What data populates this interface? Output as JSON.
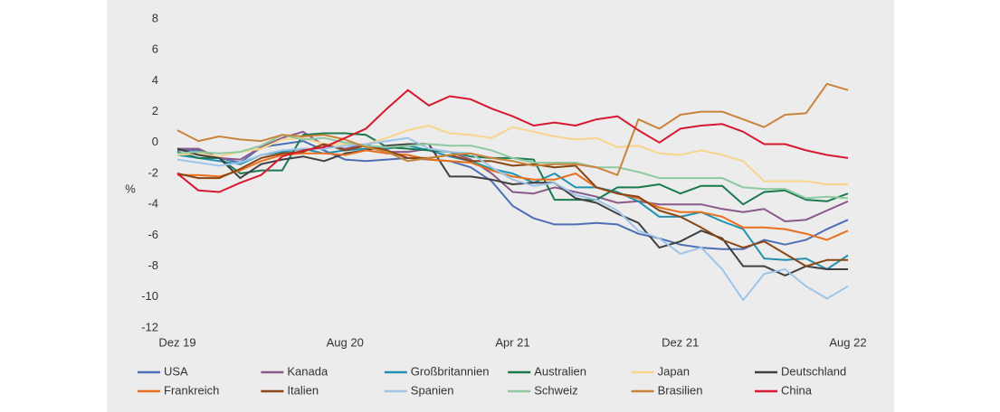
{
  "chart_data": {
    "type": "line",
    "y_label": "%",
    "categories": [
      "Dez 19",
      null,
      null,
      null,
      null,
      null,
      null,
      null,
      "Aug 20",
      null,
      null,
      null,
      null,
      null,
      null,
      null,
      "Apr 21",
      null,
      null,
      null,
      null,
      null,
      null,
      null,
      "Dez 21",
      null,
      null,
      null,
      null,
      null,
      null,
      null,
      "Aug 22"
    ],
    "ylim": [
      -12,
      8
    ],
    "yticks": [
      -12,
      -10,
      -8,
      -6,
      -4,
      -2,
      0,
      2,
      4,
      6,
      8
    ],
    "series": [
      {
        "name": "USA",
        "color": "#4f6fb5",
        "values": [
          -0.5,
          -0.5,
          -1.0,
          -1.3,
          -0.3,
          -0.1,
          0.1,
          -0.5,
          -1.1,
          -1.2,
          -1.1,
          -1.0,
          -1.1,
          -1.2,
          -1.6,
          -2.5,
          -4.1,
          -4.9,
          -5.3,
          -5.3,
          -5.2,
          -5.3,
          -5.9,
          -6.2,
          -6.6,
          -6.8,
          -6.9,
          -6.9,
          -6.3,
          -6.6,
          -6.3,
          -5.6,
          -5.0
        ]
      },
      {
        "name": "Kanada",
        "color": "#8a5a8a",
        "values": [
          -0.4,
          -0.4,
          -1.0,
          -1.1,
          -0.3,
          0.3,
          0.7,
          -0.2,
          -0.4,
          -0.1,
          -0.6,
          -0.6,
          -0.4,
          -0.6,
          -1.1,
          -2.0,
          -3.2,
          -3.3,
          -2.9,
          -3.2,
          -3.5,
          -3.9,
          -3.8,
          -4.0,
          -4.0,
          -4.0,
          -4.3,
          -4.5,
          -4.3,
          -5.1,
          -5.0,
          -4.4,
          -3.8
        ]
      },
      {
        "name": "Großbritannien",
        "color": "#2091b0",
        "values": [
          -0.8,
          -1.0,
          -1.2,
          -1.4,
          -0.8,
          -0.6,
          -0.4,
          -0.7,
          -0.5,
          -0.4,
          -0.4,
          -0.2,
          -0.5,
          -0.9,
          -1.2,
          -1.7,
          -2.0,
          -2.6,
          -2.0,
          -2.9,
          -2.9,
          -3.2,
          -3.8,
          -4.8,
          -4.8,
          -4.5,
          -5.1,
          -5.6,
          -7.5,
          -7.6,
          -7.5,
          -8.2,
          -7.3
        ]
      },
      {
        "name": "Australien",
        "color": "#1a7a4f",
        "values": [
          -0.6,
          -1.0,
          -1.0,
          -2.0,
          -1.8,
          -1.8,
          0.5,
          0.6,
          0.6,
          0.5,
          -0.3,
          -0.4,
          -0.5,
          -0.6,
          -0.9,
          -1.0,
          -1.0,
          -1.1,
          -3.7,
          -3.7,
          -3.7,
          -2.9,
          -2.9,
          -2.7,
          -3.3,
          -2.8,
          -2.8,
          -4.0,
          -3.2,
          -3.1,
          -3.7,
          -3.8,
          -3.3
        ]
      },
      {
        "name": "Japan",
        "color": "#f8d58f",
        "values": [
          -0.8,
          -0.7,
          -0.9,
          -0.6,
          -0.4,
          0.2,
          0.3,
          -0.1,
          -0.1,
          -0.1,
          0.3,
          0.8,
          1.1,
          0.6,
          0.5,
          0.3,
          1.0,
          0.7,
          0.4,
          0.2,
          0.3,
          -0.3,
          -0.2,
          -0.7,
          -0.8,
          -0.5,
          -0.8,
          -1.2,
          -2.5,
          -2.5,
          -2.5,
          -2.7,
          -2.7
        ]
      },
      {
        "name": "Deutschland",
        "color": "#404040",
        "values": [
          -0.4,
          -0.8,
          -1.0,
          -2.3,
          -1.4,
          -1.1,
          -0.9,
          -1.2,
          -0.7,
          -0.5,
          -0.2,
          -0.1,
          -0.1,
          -2.2,
          -2.2,
          -2.4,
          -2.7,
          -2.6,
          -2.6,
          -3.6,
          -3.9,
          -4.6,
          -5.2,
          -6.8,
          -6.4,
          -5.7,
          -6.2,
          -8.0,
          -8.0,
          -8.6,
          -8.0,
          -8.2,
          -8.2
        ]
      },
      {
        "name": "Frankreich",
        "color": "#e8701e",
        "values": [
          -2.1,
          -2.1,
          -2.2,
          -1.8,
          -1.2,
          -0.8,
          -0.7,
          -0.7,
          -0.8,
          -0.5,
          -0.7,
          -0.8,
          -1.1,
          -1.2,
          -1.3,
          -1.8,
          -2.2,
          -2.4,
          -2.4,
          -2.0,
          -2.9,
          -3.3,
          -3.6,
          -4.2,
          -4.5,
          -4.5,
          -4.8,
          -5.5,
          -5.5,
          -5.6,
          -5.9,
          -6.3,
          -5.7
        ]
      },
      {
        "name": "Italien",
        "color": "#8b4513",
        "values": [
          -2.0,
          -2.3,
          -2.3,
          -1.7,
          -1.0,
          -0.7,
          -0.6,
          -0.1,
          -0.5,
          -0.2,
          -0.5,
          -1.0,
          -1.0,
          -0.8,
          -1.2,
          -1.2,
          -1.5,
          -1.4,
          -1.6,
          -1.5,
          -2.9,
          -3.3,
          -3.5,
          -4.4,
          -4.8,
          -5.5,
          -6.3,
          -6.8,
          -6.4,
          -7.2,
          -8.0,
          -7.6,
          -7.6
        ]
      },
      {
        "name": "Spanien",
        "color": "#9ec5e8",
        "values": [
          -1.1,
          -1.3,
          -1.5,
          -1.3,
          -0.8,
          -0.5,
          -0.4,
          -0.4,
          -0.2,
          -0.1,
          0.1,
          0.3,
          -0.4,
          -0.6,
          -0.7,
          -1.6,
          -2.4,
          -2.8,
          -2.6,
          -3.4,
          -3.7,
          -4.4,
          -5.7,
          -6.2,
          -7.2,
          -6.8,
          -8.2,
          -10.2,
          -8.5,
          -8.2,
          -9.3,
          -10.1,
          -9.3
        ]
      },
      {
        "name": "Schweiz",
        "color": "#8ec9a0",
        "values": [
          -0.7,
          -0.6,
          -0.7,
          -0.6,
          -0.2,
          0.5,
          0.2,
          0.3,
          0.0,
          -0.2,
          -0.3,
          -0.2,
          -0.1,
          -0.2,
          -0.2,
          -0.5,
          -1.0,
          -1.3,
          -1.3,
          -1.3,
          -1.6,
          -1.6,
          -1.9,
          -2.3,
          -2.3,
          -2.3,
          -2.3,
          -2.9,
          -3.0,
          -3.0,
          -3.6,
          -3.5,
          -3.6
        ]
      },
      {
        "name": "Brasilien",
        "color": "#c8843a",
        "values": [
          0.8,
          0.1,
          0.4,
          0.2,
          0.1,
          0.5,
          0.4,
          0.5,
          0.2,
          -0.3,
          -0.6,
          -1.2,
          -1.0,
          -0.8,
          -0.7,
          -1.0,
          -1.2,
          -1.5,
          -1.4,
          -1.4,
          -1.6,
          -2.1,
          1.5,
          0.9,
          1.8,
          2.0,
          2.0,
          1.5,
          1.0,
          1.8,
          1.9,
          3.8,
          3.4
        ]
      },
      {
        "name": "China",
        "color": "#d7192f",
        "values": [
          -2.0,
          -3.1,
          -3.2,
          -2.6,
          -2.1,
          -0.9,
          -0.5,
          -0.3,
          0.3,
          0.9,
          2.2,
          3.4,
          2.4,
          3.0,
          2.8,
          2.2,
          1.7,
          1.1,
          1.3,
          1.1,
          1.5,
          1.7,
          0.8,
          0.0,
          0.9,
          1.1,
          1.2,
          0.7,
          -0.1,
          -0.1,
          -0.5,
          -0.8,
          -1.0
        ]
      }
    ]
  }
}
